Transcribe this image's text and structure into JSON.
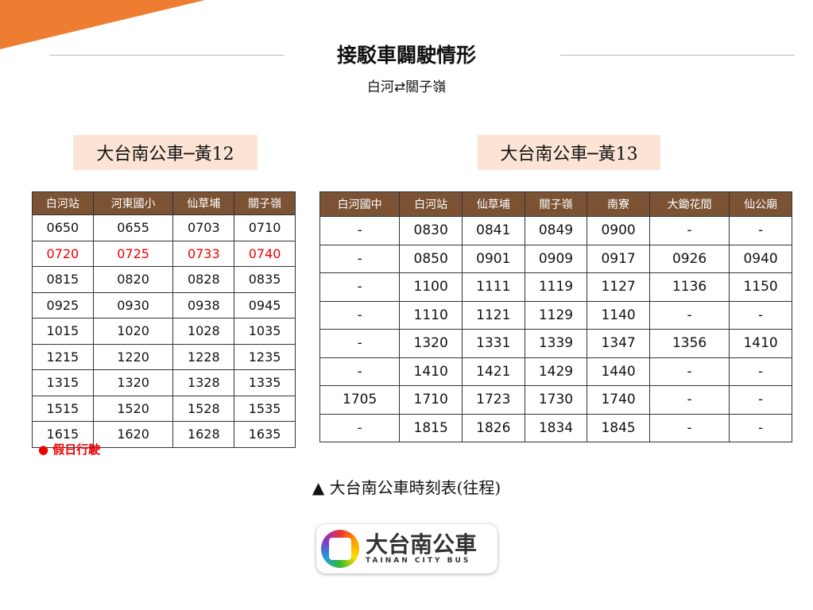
{
  "title": "接駁車闢駛情形",
  "subtitle": "白河⇄關子嶺",
  "route12": {
    "label": "大台南公車─黃12",
    "headers": [
      "白河站",
      "河東國小",
      "仙草埔",
      "關子嶺"
    ],
    "rows": [
      [
        "0650",
        "0655",
        "0703",
        "0710"
      ],
      [
        "0720",
        "0725",
        "0733",
        "0740"
      ],
      [
        "0815",
        "0820",
        "0828",
        "0835"
      ],
      [
        "0925",
        "0930",
        "0938",
        "0945"
      ],
      [
        "1015",
        "1020",
        "1028",
        "1035"
      ],
      [
        "1215",
        "1220",
        "1228",
        "1235"
      ],
      [
        "1315",
        "1320",
        "1328",
        "1335"
      ],
      [
        "1515",
        "1520",
        "1528",
        "1535"
      ],
      [
        "1615",
        "1620",
        "1628",
        "1635"
      ]
    ],
    "holiday_row": 1
  },
  "route13": {
    "label": "大台南公車─黃13",
    "headers": [
      "白河國中",
      "白河站",
      "仙草埔",
      "關子嶺",
      "南寮",
      "大鋤花間",
      "仙公廟"
    ],
    "rows": [
      [
        "-",
        "0830",
        "0841",
        "0849",
        "0900",
        "-",
        "-"
      ],
      [
        "-",
        "0850",
        "0901",
        "0909",
        "0917",
        "0926",
        "0940"
      ],
      [
        "-",
        "1100",
        "1111",
        "1119",
        "1127",
        "1136",
        "1150"
      ],
      [
        "-",
        "1110",
        "1121",
        "1129",
        "1140",
        "-",
        "-"
      ],
      [
        "-",
        "1320",
        "1331",
        "1339",
        "1347",
        "1356",
        "1410"
      ],
      [
        "-",
        "1410",
        "1421",
        "1429",
        "1440",
        "-",
        "-"
      ],
      [
        "1705",
        "1710",
        "1723",
        "1730",
        "1740",
        "-",
        "-"
      ],
      [
        "-",
        "1815",
        "1826",
        "1834",
        "1845",
        "-",
        "-"
      ]
    ]
  },
  "note": "● 假日行駛",
  "caption": "▲ 大台南公車時刻表(往程)",
  "logo": {
    "main": "大台南公車",
    "sub": "TAINAN CITY BUS"
  },
  "colors": {
    "accent": "#ee7d31",
    "header": "#7b5233",
    "label_bg": "#fbe4d5",
    "holiday": "#ee0000"
  }
}
